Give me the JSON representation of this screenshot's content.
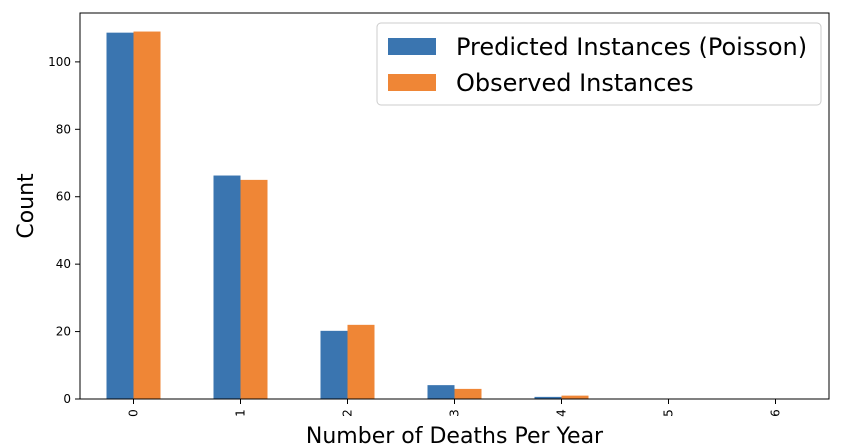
{
  "chart_data": {
    "type": "bar",
    "categories": [
      "0",
      "1",
      "2",
      "3",
      "4",
      "5",
      "6"
    ],
    "series": [
      {
        "name": "Predicted Instances (Poisson)",
        "color": "#3a75b0",
        "values": [
          108.67,
          66.29,
          20.22,
          4.11,
          0.63,
          0.08,
          0.01
        ]
      },
      {
        "name": "Observed Instances",
        "color": "#ef8636",
        "values": [
          109,
          65,
          22,
          3,
          1,
          0,
          0
        ]
      }
    ],
    "xlabel": "Number of Deaths Per Year",
    "ylabel": "Count",
    "ylim": [
      0,
      114.5
    ],
    "yticks": [
      0,
      20,
      40,
      60,
      80,
      100
    ],
    "grid": false,
    "legend_position": "top-right"
  }
}
